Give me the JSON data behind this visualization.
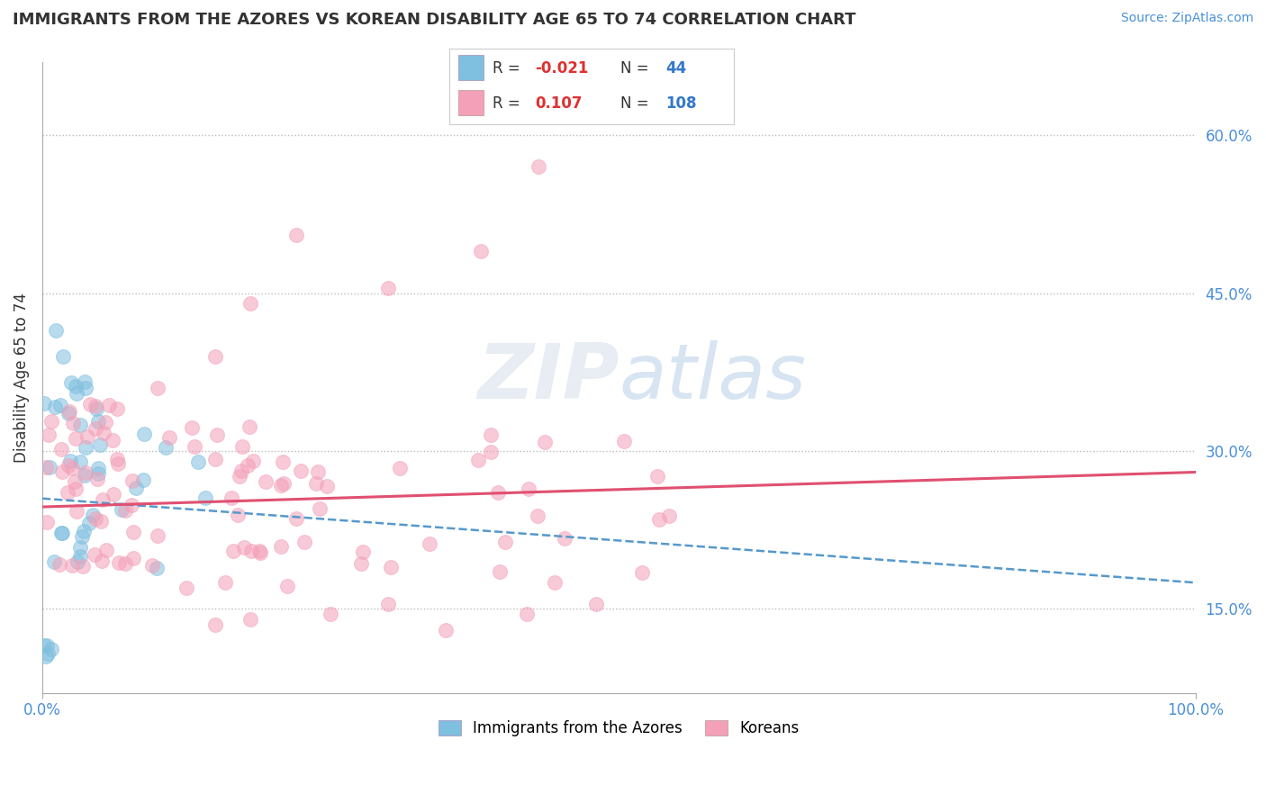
{
  "title": "IMMIGRANTS FROM THE AZORES VS KOREAN DISABILITY AGE 65 TO 74 CORRELATION CHART",
  "source_text": "Source: ZipAtlas.com",
  "ylabel": "Disability Age 65 to 74",
  "xlim": [
    0.0,
    1.0
  ],
  "ylim": [
    0.07,
    0.67
  ],
  "yticks": [
    0.15,
    0.3,
    0.45,
    0.6
  ],
  "ytick_labels": [
    "15.0%",
    "30.0%",
    "45.0%",
    "60.0%"
  ],
  "label1": "Immigrants from the Azores",
  "label2": "Koreans",
  "color1": "#7fbfdf",
  "color2": "#f4a0b8",
  "trendline1_color": "#5599cc",
  "trendline2_color": "#e05070",
  "background_color": "#ffffff",
  "grid_color": "#cccccc",
  "r1": -0.021,
  "n1": 44,
  "r2": 0.107,
  "n2": 108,
  "trendline1_x0": 0.0,
  "trendline1_y0": 0.255,
  "trendline1_x1": 1.0,
  "trendline1_y1": 0.175,
  "trendline2_x0": 0.0,
  "trendline2_y0": 0.247,
  "trendline2_x1": 1.0,
  "trendline2_y1": 0.28
}
